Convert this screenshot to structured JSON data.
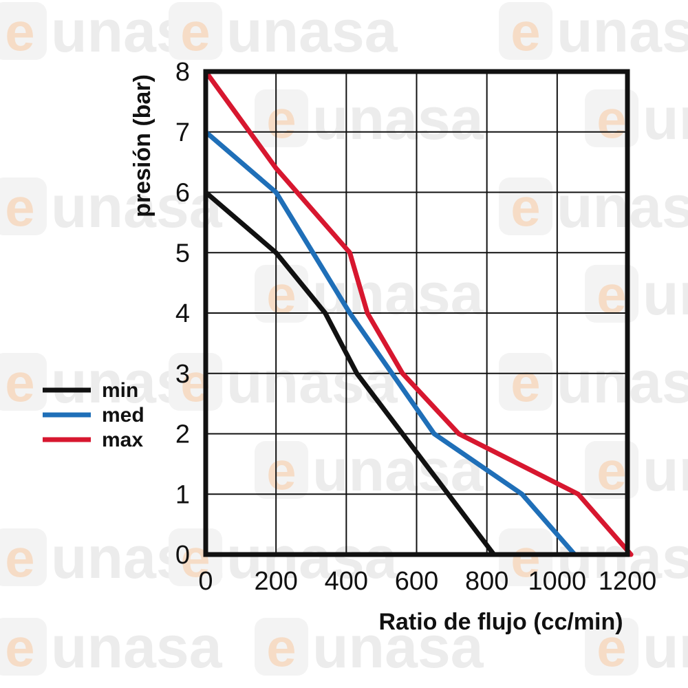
{
  "watermark": {
    "text": "unasa",
    "letter": "e"
  },
  "chart_data": {
    "type": "line",
    "title": "",
    "xlabel": "Ratio de flujo (cc/min)",
    "ylabel": "presión (bar)",
    "xlim": [
      0,
      1200
    ],
    "ylim": [
      0,
      8
    ],
    "xticks": [
      "0",
      "200",
      "400",
      "600",
      "800",
      "1000",
      "1200"
    ],
    "yticks": [
      "0",
      "1",
      "2",
      "3",
      "4",
      "5",
      "6",
      "7",
      "8"
    ],
    "grid": true,
    "legend_position": "left",
    "series": [
      {
        "name": "min",
        "color": "#111111",
        "x": [
          0,
          200,
          340,
          430,
          560,
          820
        ],
        "y": [
          6,
          5,
          4,
          3,
          2,
          0
        ]
      },
      {
        "name": "med",
        "color": "#1f6fb8",
        "x": [
          0,
          200,
          410,
          650,
          900,
          1050
        ],
        "y": [
          7,
          6,
          4,
          2,
          1,
          0
        ]
      },
      {
        "name": "max",
        "color": "#d7172f",
        "x": [
          0,
          200,
          410,
          460,
          560,
          720,
          1060,
          1210
        ],
        "y": [
          8,
          6.4,
          5,
          4,
          3,
          2,
          1,
          0
        ]
      }
    ]
  }
}
